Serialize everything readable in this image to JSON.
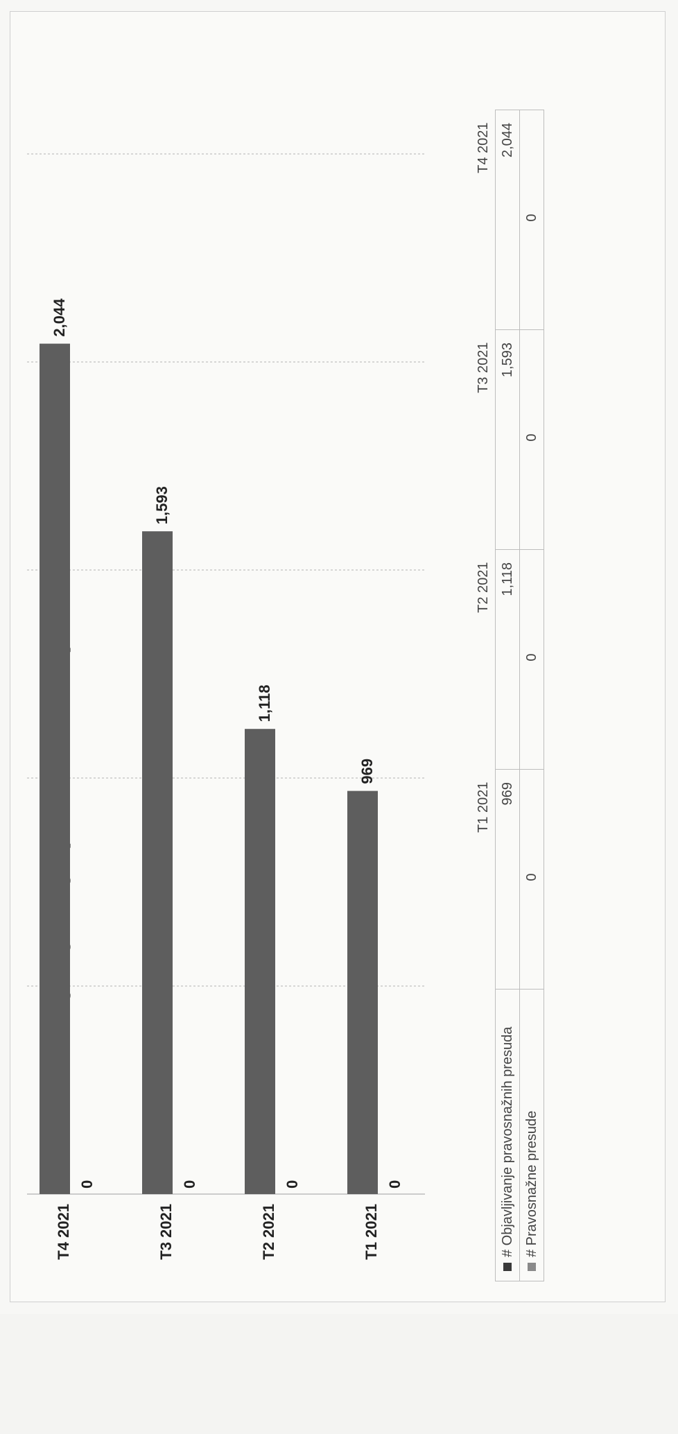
{
  "chart_data": {
    "type": "bar",
    "orientation": "horizontal",
    "title": "Objavljivanje pravosnažnih presuda",
    "categories": [
      "T1 2021",
      "T2 2021",
      "T3 2021",
      "T4 2021"
    ],
    "series": [
      {
        "name": "# Objavljivanje pravosnažnih presuda",
        "values": [
          969,
          1118,
          1593,
          2044
        ],
        "labels": [
          "969",
          "1,118",
          "1,593",
          "2,044"
        ],
        "color": "#5e5e5e"
      },
      {
        "name": "# Pravosnažne presude",
        "values": [
          0,
          0,
          0,
          0
        ],
        "labels": [
          "0",
          "0",
          "0",
          "0"
        ],
        "color": "#8a8a8a"
      }
    ],
    "xlim": [
      0,
      2500
    ],
    "gridlines": [
      0,
      500,
      1000,
      1500,
      2000,
      2500
    ],
    "grid": true,
    "data_table": true
  }
}
